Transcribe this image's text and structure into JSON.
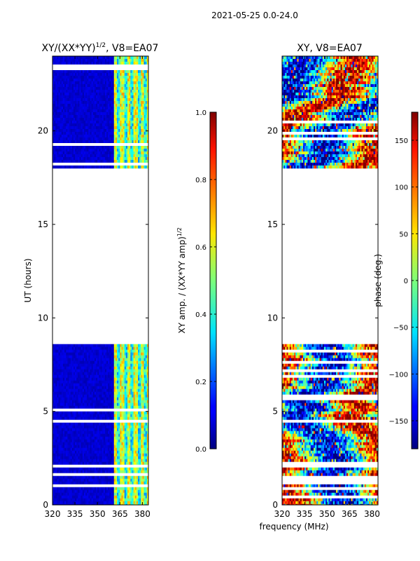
{
  "suptitle": "2021-05-25 0.0-24.0",
  "shared_xlabel": "frequency (MHz)",
  "chart_data": [
    {
      "type": "heatmap",
      "title": "XY/(XX*YY)",
      "title_exponent": "1/2",
      "title_suffix": ", V8=EA07",
      "xlabel": "",
      "ylabel": "UT (hours)",
      "xlim": [
        320,
        384
      ],
      "ylim": [
        0,
        24
      ],
      "x_ticks": [
        320,
        335,
        350,
        365,
        380
      ],
      "y_ticks": [
        0,
        5,
        10,
        15,
        20
      ],
      "data_time_ranges": [
        [
          0,
          8.6
        ],
        [
          18.0,
          24.0
        ]
      ],
      "bright_band_mhz": [
        361,
        384
      ],
      "colorbar": {
        "label": "XY amp. / (XX*YY amp)",
        "label_exponent": "1/2",
        "range": [
          0.0,
          1.0
        ],
        "ticks": [
          "0.0",
          "0.2",
          "0.4",
          "0.6",
          "0.8",
          "1.0"
        ],
        "colormap": "jet"
      }
    },
    {
      "type": "heatmap",
      "title": "XY, V8=EA07",
      "xlabel": "frequency (MHz)",
      "ylabel": "",
      "xlim": [
        320,
        384
      ],
      "ylim": [
        0,
        24
      ],
      "x_ticks": [
        320,
        335,
        350,
        365,
        380
      ],
      "y_ticks": [
        0,
        5,
        10,
        15,
        20
      ],
      "data_time_ranges": [
        [
          0,
          8.6
        ],
        [
          18.0,
          24.0
        ]
      ],
      "colorbar": {
        "label": "phase (deg.)",
        "range": [
          -180,
          180
        ],
        "ticks": [
          "−150",
          "−100",
          "−50",
          "0",
          "50",
          "100",
          "150"
        ],
        "tick_values": [
          -150,
          -100,
          -50,
          0,
          50,
          100,
          150
        ],
        "colormap": "jet"
      }
    }
  ]
}
